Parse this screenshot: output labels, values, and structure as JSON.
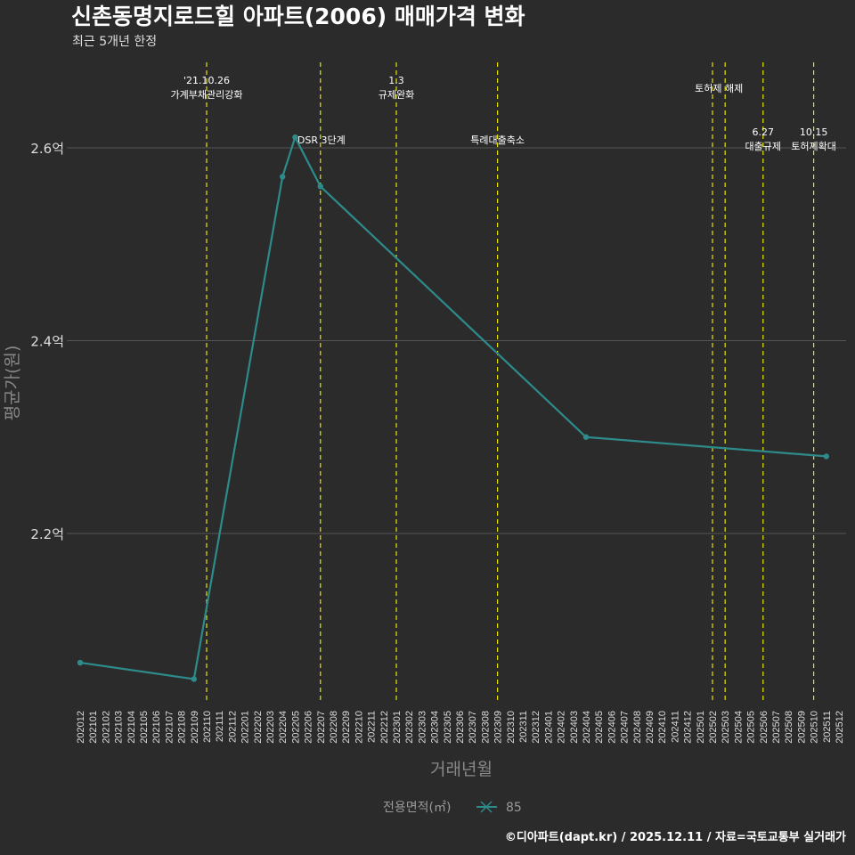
{
  "header": {
    "title": "신촌동명지로드힐 아파트(2006) 매매가격 변화",
    "subtitle": "최근 5개년 한정"
  },
  "footer": "©디아파트(dapt.kr) / 2025.12.11 / 자료=국토교통부 실거래가",
  "chart_data": {
    "type": "line",
    "title": "신촌동명지로드힐 아파트(2006) 매매가격 변화",
    "xlabel": "거래년월",
    "ylabel": "평균가(원)",
    "x_ticks": [
      "202012",
      "202101",
      "202102",
      "202103",
      "202104",
      "202105",
      "202106",
      "202107",
      "202108",
      "202109",
      "202110",
      "202111",
      "202112",
      "202201",
      "202202",
      "202203",
      "202204",
      "202205",
      "202206",
      "202207",
      "202208",
      "202209",
      "202210",
      "202211",
      "202212",
      "202301",
      "202302",
      "202303",
      "202304",
      "202305",
      "202306",
      "202307",
      "202308",
      "202309",
      "202310",
      "202311",
      "202312",
      "202401",
      "202402",
      "202403",
      "202404",
      "202405",
      "202406",
      "202407",
      "202408",
      "202409",
      "202410",
      "202411",
      "202412",
      "202501",
      "202502",
      "202503",
      "202504",
      "202505",
      "202506",
      "202507",
      "202508",
      "202509",
      "202510",
      "202511",
      "202512"
    ],
    "y_ticks": [
      {
        "value": 2.2,
        "label": "2.2억"
      },
      {
        "value": 2.4,
        "label": "2.4억"
      },
      {
        "value": 2.6,
        "label": "2.6억"
      }
    ],
    "ylim": [
      2.01,
      2.68
    ],
    "grid": true,
    "legend": {
      "title": "전용면적(㎡)",
      "position": "bottom"
    },
    "series": [
      {
        "name": "85",
        "color": "#2e8b8b",
        "points": [
          {
            "x": "202012",
            "y": 2.066
          },
          {
            "x": "202109",
            "y": 2.049
          },
          {
            "x": "202204",
            "y": 2.57
          },
          {
            "x": "202205",
            "y": 2.611
          },
          {
            "x": "202207",
            "y": 2.56
          },
          {
            "x": "202404",
            "y": 2.3
          },
          {
            "x": "202511",
            "y": 2.28
          }
        ]
      }
    ],
    "events": [
      {
        "x": "202110",
        "lines": [
          "'21.10.26",
          "가계부채관리강화"
        ],
        "row": "top"
      },
      {
        "x": "202207",
        "lines": [
          "DSR 3단계"
        ],
        "row": "mid"
      },
      {
        "x": "202301",
        "lines": [
          "1.3",
          "규제완화"
        ],
        "row": "top"
      },
      {
        "x": "202309",
        "lines": [
          "특례대출축소"
        ],
        "row": "mid"
      },
      {
        "x": "202502",
        "lines": [],
        "row": "none"
      },
      {
        "x": "202503",
        "lines": [
          "토허제 해제"
        ],
        "row": "top2"
      },
      {
        "x": "202506",
        "lines": [
          "6.27",
          "대출규제"
        ],
        "row": "low"
      },
      {
        "x": "202510",
        "lines": [
          "10.15",
          "토허제확대"
        ],
        "row": "low"
      }
    ],
    "event_color": "#e6e600"
  }
}
